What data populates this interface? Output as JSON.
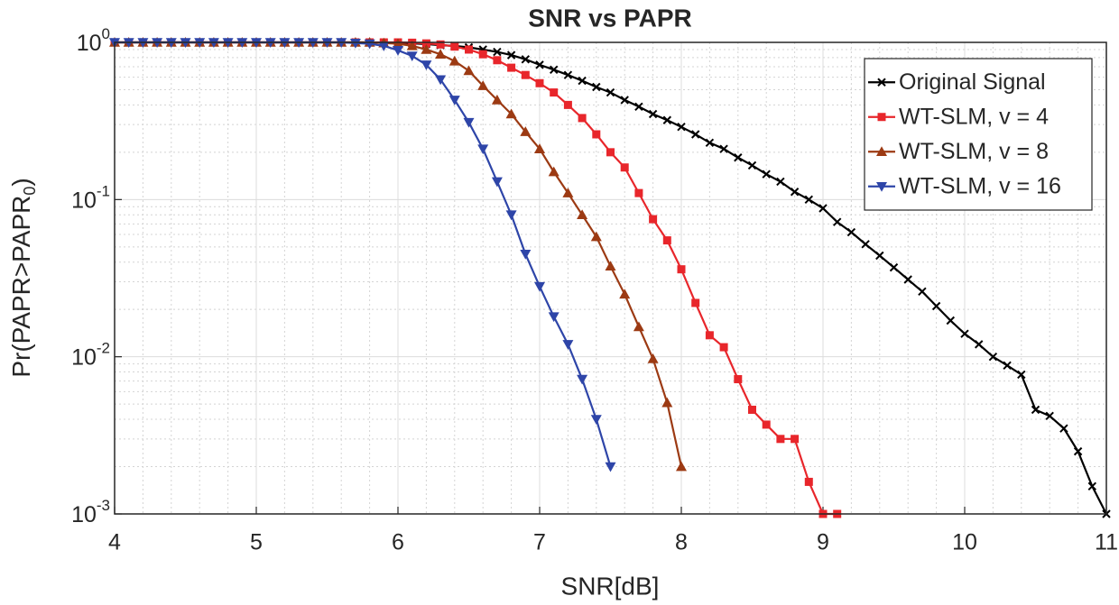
{
  "chart_data": {
    "type": "line",
    "title": "SNR vs PAPR",
    "xlabel": "SNR[dB]",
    "ylabel": {
      "main": "Pr(PAPR>PAPR",
      "sub": "0",
      "end": ")"
    },
    "xlim": [
      4,
      11
    ],
    "xticks": [
      4,
      5,
      6,
      7,
      8,
      9,
      10,
      11
    ],
    "ylim": [
      0.001,
      1
    ],
    "yscale": "log",
    "yticks": [
      {
        "value": 0.001,
        "label": "10^-3"
      },
      {
        "value": 0.01,
        "label": "10^-2"
      },
      {
        "value": 0.1,
        "label": "10^-1"
      },
      {
        "value": 1,
        "label": "10^0"
      }
    ],
    "grid": true,
    "legend_position": "upper right",
    "series": [
      {
        "name": "Original Signal",
        "color": "#000000",
        "marker": "x",
        "x": [
          4.0,
          4.1,
          4.2,
          4.3,
          4.4,
          4.5,
          4.6,
          4.7,
          4.8,
          4.9,
          5.0,
          5.1,
          5.2,
          5.3,
          5.4,
          5.5,
          5.6,
          5.7,
          5.8,
          5.9,
          6.0,
          6.1,
          6.2,
          6.3,
          6.4,
          6.5,
          6.6,
          6.7,
          6.8,
          6.9,
          7.0,
          7.1,
          7.2,
          7.3,
          7.4,
          7.5,
          7.6,
          7.7,
          7.8,
          7.9,
          8.0,
          8.1,
          8.2,
          8.3,
          8.4,
          8.5,
          8.6,
          8.7,
          8.8,
          8.9,
          9.0,
          9.1,
          9.2,
          9.3,
          9.4,
          9.5,
          9.6,
          9.7,
          9.8,
          9.9,
          10.0,
          10.1,
          10.2,
          10.3,
          10.4,
          10.5,
          10.6,
          10.7,
          10.8,
          10.9,
          11.0
        ],
        "values": [
          1,
          1,
          1,
          1,
          1,
          1,
          1,
          1,
          1,
          1,
          1,
          1,
          1,
          1,
          1,
          1,
          1,
          1,
          0.998,
          0.995,
          0.99,
          0.985,
          0.975,
          0.96,
          0.95,
          0.93,
          0.9,
          0.87,
          0.83,
          0.78,
          0.72,
          0.67,
          0.62,
          0.57,
          0.52,
          0.48,
          0.43,
          0.39,
          0.35,
          0.32,
          0.29,
          0.26,
          0.23,
          0.21,
          0.185,
          0.165,
          0.145,
          0.13,
          0.112,
          0.1,
          0.088,
          0.072,
          0.062,
          0.052,
          0.044,
          0.037,
          0.031,
          0.026,
          0.021,
          0.017,
          0.014,
          0.012,
          0.01,
          0.0088,
          0.0077,
          0.0046,
          0.0042,
          0.0035,
          0.0025,
          0.0015,
          0.001
        ]
      },
      {
        "name": "WT-SLM, v = 4",
        "color": "#e8262b",
        "marker": "square",
        "x": [
          4.0,
          4.1,
          4.2,
          4.3,
          4.4,
          4.5,
          4.6,
          4.7,
          4.8,
          4.9,
          5.0,
          5.1,
          5.2,
          5.3,
          5.4,
          5.5,
          5.6,
          5.7,
          5.8,
          5.9,
          6.0,
          6.1,
          6.2,
          6.3,
          6.4,
          6.5,
          6.6,
          6.7,
          6.8,
          6.9,
          7.0,
          7.1,
          7.2,
          7.3,
          7.4,
          7.5,
          7.6,
          7.7,
          7.8,
          7.9,
          8.0,
          8.1,
          8.2,
          8.3,
          8.4,
          8.5,
          8.6,
          8.7,
          8.8,
          8.9,
          9.0,
          9.1
        ],
        "values": [
          1,
          1,
          1,
          1,
          1,
          1,
          1,
          1,
          1,
          1,
          1,
          1,
          1,
          1,
          1,
          1,
          1,
          1,
          1,
          1,
          1,
          0.995,
          0.985,
          0.97,
          0.94,
          0.9,
          0.84,
          0.77,
          0.69,
          0.62,
          0.55,
          0.48,
          0.4,
          0.33,
          0.26,
          0.2,
          0.16,
          0.11,
          0.075,
          0.055,
          0.036,
          0.022,
          0.0137,
          0.0115,
          0.0072,
          0.0046,
          0.0037,
          0.003,
          0.003,
          0.0016,
          0.001,
          0.001
        ]
      },
      {
        "name": "WT-SLM, v = 8",
        "color": "#9c3a13",
        "marker": "triangle-up",
        "x": [
          4.0,
          4.1,
          4.2,
          4.3,
          4.4,
          4.5,
          4.6,
          4.7,
          4.8,
          4.9,
          5.0,
          5.1,
          5.2,
          5.3,
          5.4,
          5.5,
          5.6,
          5.7,
          5.8,
          5.9,
          6.0,
          6.1,
          6.2,
          6.3,
          6.4,
          6.5,
          6.6,
          6.7,
          6.8,
          6.9,
          7.0,
          7.1,
          7.2,
          7.3,
          7.4,
          7.5,
          7.6,
          7.7,
          7.8,
          7.9,
          8.0
        ],
        "values": [
          1,
          1,
          1,
          1,
          1,
          1,
          1,
          1,
          1,
          1,
          1,
          1,
          1,
          1,
          1,
          1,
          1,
          1,
          1,
          0.99,
          0.98,
          0.95,
          0.9,
          0.84,
          0.76,
          0.66,
          0.53,
          0.43,
          0.35,
          0.27,
          0.21,
          0.15,
          0.11,
          0.08,
          0.058,
          0.0377,
          0.025,
          0.0155,
          0.0097,
          0.0051,
          0.002
        ]
      },
      {
        "name": "WT-SLM, v = 16",
        "color": "#2e45a8",
        "marker": "triangle-down",
        "x": [
          4.0,
          4.1,
          4.2,
          4.3,
          4.4,
          4.5,
          4.6,
          4.7,
          4.8,
          4.9,
          5.0,
          5.1,
          5.2,
          5.3,
          5.4,
          5.5,
          5.6,
          5.7,
          5.8,
          5.9,
          6.0,
          6.1,
          6.2,
          6.3,
          6.4,
          6.5,
          6.6,
          6.7,
          6.8,
          6.9,
          7.0,
          7.1,
          7.2,
          7.3,
          7.4,
          7.5
        ],
        "values": [
          1,
          1,
          1,
          1,
          1,
          1,
          1,
          1,
          1,
          1,
          1,
          1,
          1,
          1,
          1,
          1,
          1,
          0.99,
          0.98,
          0.95,
          0.89,
          0.82,
          0.72,
          0.58,
          0.43,
          0.31,
          0.21,
          0.13,
          0.08,
          0.045,
          0.028,
          0.018,
          0.012,
          0.0072,
          0.004,
          0.002
        ]
      }
    ]
  }
}
